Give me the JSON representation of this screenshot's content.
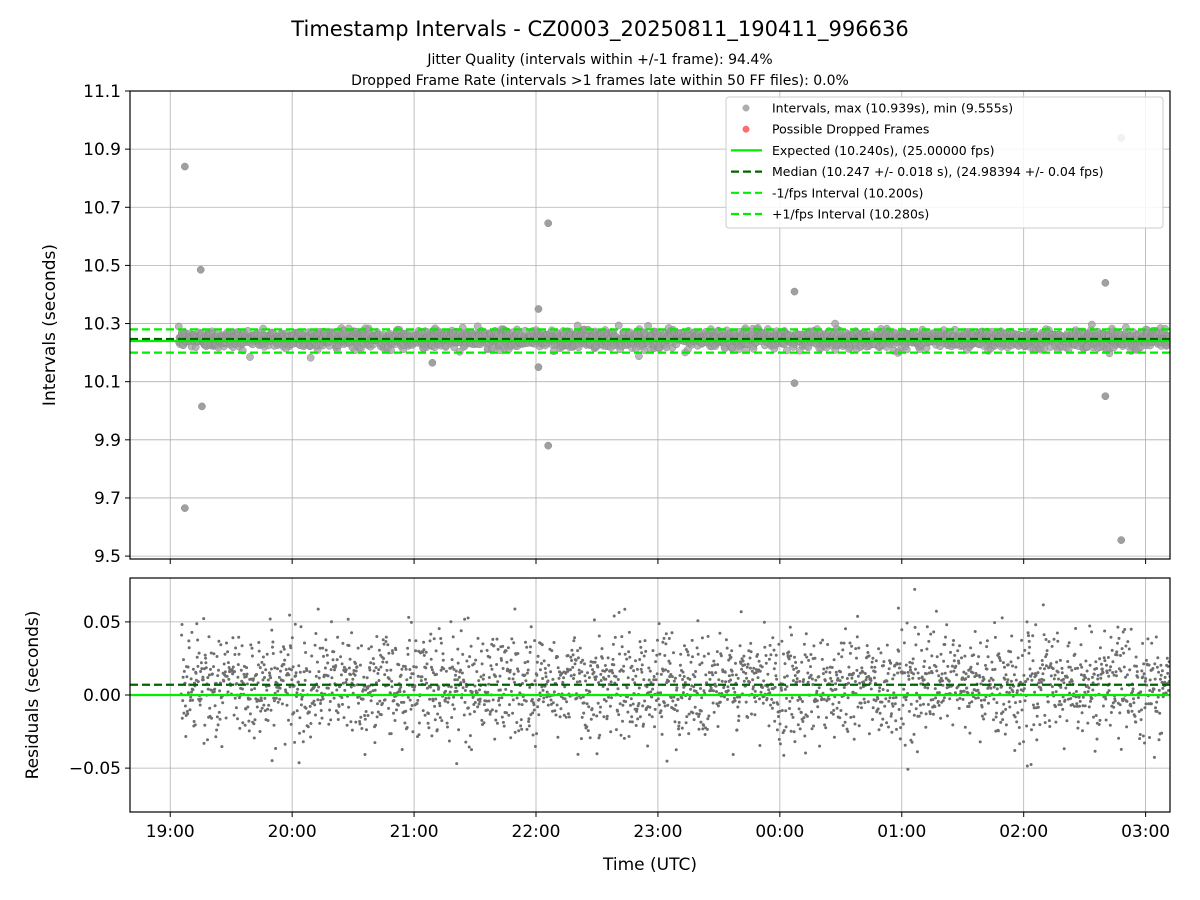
{
  "chart_data": [
    {
      "type": "scatter",
      "title": "Timestamp Intervals - CZ0003_20250811_190411_996636",
      "subtitle_1": "Jitter Quality (intervals within +/-1 frame): 94.4%",
      "subtitle_2": "Dropped Frame Rate (intervals >1 frames late within 50 FF files): 0.0%",
      "xlabel": "",
      "ylabel": "Intervals (seconds)",
      "xlim_hours": [
        18.67,
        27.2
      ],
      "ylim": [
        9.49,
        11.1
      ],
      "yticks": [
        9.5,
        9.7,
        9.9,
        10.1,
        10.3,
        10.5,
        10.7,
        10.9,
        11.1
      ],
      "ytick_labels": [
        "9.5",
        "9.7",
        "9.9",
        "10.1",
        "10.3",
        "10.5",
        "10.7",
        "10.9",
        "11.1"
      ],
      "grid": true,
      "legend_position": "top-right",
      "legend": [
        {
          "label": "Intervals, max (10.939s), min (9.555s)",
          "kind": "marker",
          "color": "#a0a0a0"
        },
        {
          "label": "Possible Dropped Frames",
          "kind": "marker",
          "color": "#ff5555"
        },
        {
          "label": "Expected (10.240s), (25.00000 fps)",
          "kind": "line",
          "color": "#00ee00"
        },
        {
          "label": "Median (10.247 +/- 0.018 s), (24.98394 +/- 0.04 fps)",
          "kind": "dashed",
          "color": "#006400"
        },
        {
          "label": "-1/fps Interval (10.200s)",
          "kind": "dashed",
          "color": "#00ee00"
        },
        {
          "label": "+1/fps Interval (10.280s)",
          "kind": "dashed",
          "color": "#00ee00"
        }
      ],
      "reference_lines": {
        "expected": 10.24,
        "median": 10.247,
        "lower": 10.2,
        "upper": 10.28
      },
      "x_start_hours": 19.07,
      "x_end_hours": 27.2,
      "band_center": 10.247,
      "band_halfwidth": 0.022,
      "outliers": [
        {
          "x": 19.12,
          "y": 10.84
        },
        {
          "x": 19.25,
          "y": 10.485
        },
        {
          "x": 19.26,
          "y": 10.015
        },
        {
          "x": 19.12,
          "y": 9.665
        },
        {
          "x": 22.02,
          "y": 10.35
        },
        {
          "x": 22.02,
          "y": 10.15
        },
        {
          "x": 22.1,
          "y": 10.645
        },
        {
          "x": 22.1,
          "y": 9.88
        },
        {
          "x": 21.15,
          "y": 10.165
        },
        {
          "x": 24.12,
          "y": 10.41
        },
        {
          "x": 24.12,
          "y": 10.095
        },
        {
          "x": 26.67,
          "y": 10.44
        },
        {
          "x": 26.67,
          "y": 10.05
        },
        {
          "x": 26.8,
          "y": 10.939
        },
        {
          "x": 26.8,
          "y": 9.555
        }
      ],
      "colors": {
        "points": "#a0a0a0",
        "points_edge": "#8c8c8c",
        "expected": "#00ee00",
        "median": "#006400"
      }
    },
    {
      "type": "scatter",
      "xlabel": "Time (UTC)",
      "ylabel": "Residuals (seconds)",
      "ylim": [
        -0.08,
        0.08
      ],
      "yticks": [
        -0.05,
        0.0,
        0.05
      ],
      "ytick_labels": [
        "−0.05",
        "0.00",
        "0.05"
      ],
      "xticks_hours": [
        19,
        20,
        21,
        22,
        23,
        24,
        25,
        26,
        27
      ],
      "xtick_labels": [
        "19:00",
        "20:00",
        "21:00",
        "22:00",
        "23:00",
        "00:00",
        "01:00",
        "02:00",
        "03:00"
      ],
      "grid": true,
      "zero_line": 0.0,
      "median_residual": 0.007,
      "points_color": "#6e6e6e"
    }
  ]
}
